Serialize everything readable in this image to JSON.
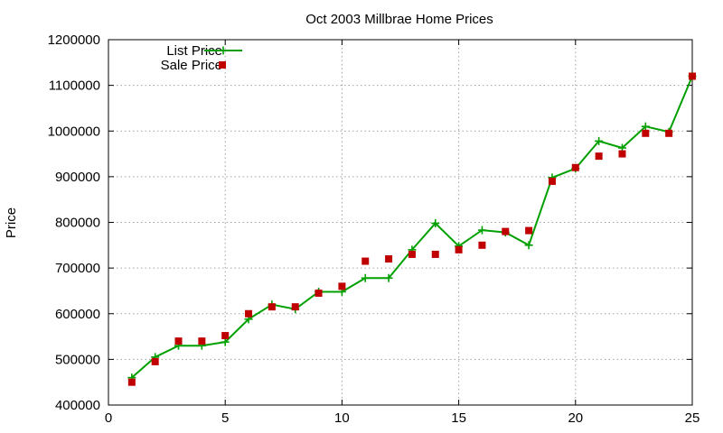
{
  "chart_data": {
    "type": "line",
    "title": "Oct 2003 Millbrae Home Prices",
    "xlabel": "",
    "ylabel": "Price",
    "xlim": [
      0,
      25
    ],
    "ylim": [
      400000,
      1200000
    ],
    "xticks": [
      "0",
      "5",
      "10",
      "15",
      "20",
      "25"
    ],
    "xtick_values": [
      0,
      5,
      10,
      15,
      20,
      25
    ],
    "yticks": [
      "400000",
      "500000",
      "600000",
      "700000",
      "800000",
      "900000",
      "1000000",
      "1100000",
      "1200000"
    ],
    "ytick_values": [
      400000,
      500000,
      600000,
      700000,
      800000,
      900000,
      1000000,
      1100000,
      1200000
    ],
    "grid": true,
    "legend_position": "top-left",
    "x": [
      1,
      2,
      3,
      4,
      5,
      6,
      7,
      8,
      9,
      10,
      11,
      12,
      13,
      14,
      15,
      16,
      17,
      18,
      19,
      20,
      21,
      22,
      23,
      24,
      25
    ],
    "series": [
      {
        "name": "List Price",
        "style": "linespoints",
        "color": "#00a000",
        "values": [
          460000,
          505000,
          530000,
          530000,
          538000,
          588000,
          620000,
          610000,
          648000,
          648000,
          678000,
          678000,
          740000,
          798000,
          748000,
          783000,
          778000,
          750000,
          898000,
          918000,
          978000,
          963000,
          1010000,
          998000,
          1120000
        ]
      },
      {
        "name": "Sale Price",
        "style": "points",
        "color": "#c00000",
        "values": [
          450000,
          495000,
          540000,
          540000,
          552000,
          600000,
          615000,
          615000,
          645000,
          660000,
          715000,
          720000,
          730000,
          730000,
          740000,
          750000,
          780000,
          782000,
          890000,
          920000,
          945000,
          950000,
          995000,
          995000,
          1120000
        ]
      }
    ]
  }
}
